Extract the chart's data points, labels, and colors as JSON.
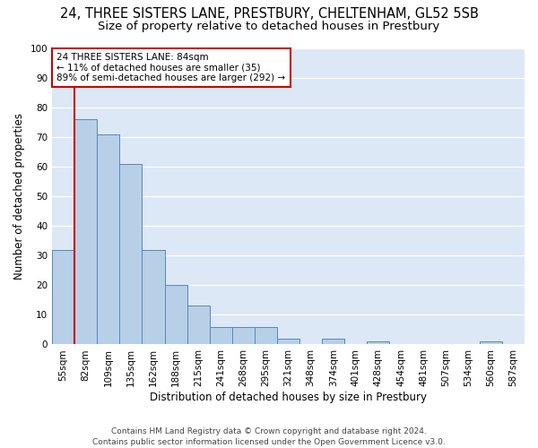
{
  "title1": "24, THREE SISTERS LANE, PRESTBURY, CHELTENHAM, GL52 5SB",
  "title2": "Size of property relative to detached houses in Prestbury",
  "xlabel": "Distribution of detached houses by size in Prestbury",
  "ylabel": "Number of detached properties",
  "categories": [
    "55sqm",
    "82sqm",
    "109sqm",
    "135sqm",
    "162sqm",
    "188sqm",
    "215sqm",
    "241sqm",
    "268sqm",
    "295sqm",
    "321sqm",
    "348sqm",
    "374sqm",
    "401sqm",
    "428sqm",
    "454sqm",
    "481sqm",
    "507sqm",
    "534sqm",
    "560sqm",
    "587sqm"
  ],
  "values": [
    32,
    76,
    71,
    61,
    32,
    20,
    13,
    6,
    6,
    6,
    2,
    0,
    2,
    0,
    1,
    0,
    0,
    0,
    0,
    1,
    0
  ],
  "bar_color": "#b8cfe8",
  "bar_edge_color": "#5588bb",
  "subject_line_color": "#cc0000",
  "annotation_text": "24 THREE SISTERS LANE: 84sqm\n← 11% of detached houses are smaller (35)\n89% of semi-detached houses are larger (292) →",
  "annotation_box_color": "#cc0000",
  "ylim": [
    0,
    100
  ],
  "yticks": [
    0,
    10,
    20,
    30,
    40,
    50,
    60,
    70,
    80,
    90,
    100
  ],
  "footer": "Contains HM Land Registry data © Crown copyright and database right 2024.\nContains public sector information licensed under the Open Government Licence v3.0.",
  "fig_bg_color": "#ffffff",
  "plot_bg_color": "#dce8f5",
  "grid_color": "#ffffff",
  "title1_fontsize": 10.5,
  "title2_fontsize": 9.5,
  "xlabel_fontsize": 8.5,
  "ylabel_fontsize": 8.5,
  "footer_fontsize": 6.5,
  "tick_fontsize": 7.5,
  "annot_fontsize": 7.5
}
